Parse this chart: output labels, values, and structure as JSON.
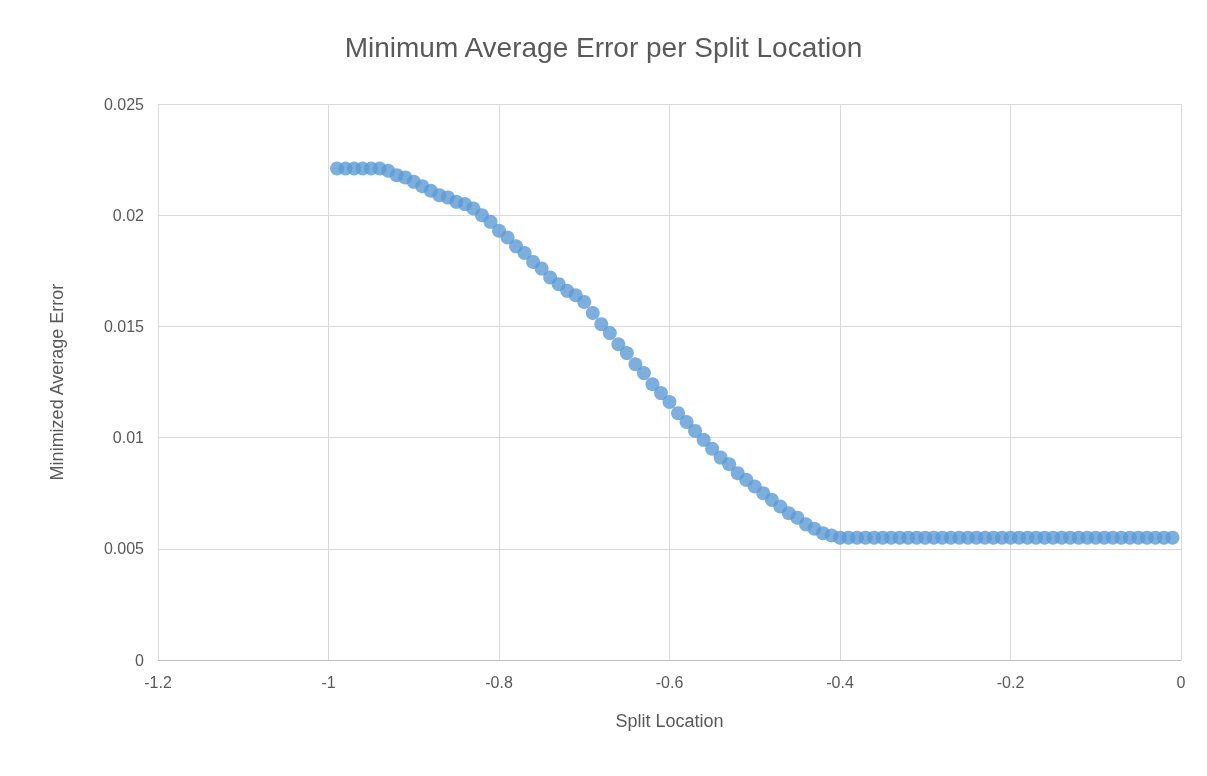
{
  "chart_data": {
    "type": "scatter",
    "title": "Minimum Average Error per Split Location",
    "xlabel": "Split Location",
    "ylabel": "Minimized Average Error",
    "x": [
      -0.99,
      -0.98,
      -0.97,
      -0.96,
      -0.95,
      -0.94,
      -0.93,
      -0.92,
      -0.91,
      -0.9,
      -0.89,
      -0.88,
      -0.87,
      -0.86,
      -0.85,
      -0.84,
      -0.83,
      -0.82,
      -0.81,
      -0.8,
      -0.79,
      -0.78,
      -0.77,
      -0.76,
      -0.75,
      -0.74,
      -0.73,
      -0.72,
      -0.71,
      -0.7,
      -0.69,
      -0.68,
      -0.67,
      -0.66,
      -0.65,
      -0.64,
      -0.63,
      -0.62,
      -0.61,
      -0.6,
      -0.59,
      -0.58,
      -0.57,
      -0.56,
      -0.55,
      -0.54,
      -0.53,
      -0.52,
      -0.51,
      -0.5,
      -0.49,
      -0.48,
      -0.47,
      -0.46,
      -0.45,
      -0.44,
      -0.43,
      -0.42,
      -0.41,
      -0.4,
      -0.39,
      -0.38,
      -0.37,
      -0.36,
      -0.35,
      -0.34,
      -0.33,
      -0.32,
      -0.31,
      -0.3,
      -0.29,
      -0.28,
      -0.27,
      -0.26,
      -0.25,
      -0.24,
      -0.23,
      -0.22,
      -0.21,
      -0.2,
      -0.19,
      -0.18,
      -0.17,
      -0.16,
      -0.15,
      -0.14,
      -0.13,
      -0.12,
      -0.11,
      -0.1,
      -0.09,
      -0.08,
      -0.07,
      -0.06,
      -0.05,
      -0.04,
      -0.03,
      -0.02,
      -0.01
    ],
    "series": [
      {
        "color": "#5b9bd5",
        "values": [
          0.0221,
          0.0221,
          0.0221,
          0.0221,
          0.0221,
          0.0221,
          0.022,
          0.0218,
          0.0217,
          0.0215,
          0.0213,
          0.0211,
          0.0209,
          0.0208,
          0.0206,
          0.0205,
          0.0203,
          0.02,
          0.0197,
          0.0193,
          0.019,
          0.0186,
          0.0183,
          0.0179,
          0.0176,
          0.0172,
          0.0169,
          0.0166,
          0.0164,
          0.0161,
          0.0156,
          0.0151,
          0.0147,
          0.0142,
          0.0138,
          0.0133,
          0.0129,
          0.0124,
          0.012,
          0.0116,
          0.0111,
          0.0107,
          0.0103,
          0.0099,
          0.0095,
          0.0091,
          0.0088,
          0.0084,
          0.0081,
          0.0078,
          0.0075,
          0.0072,
          0.0069,
          0.0066,
          0.0064,
          0.0061,
          0.0059,
          0.0057,
          0.0056,
          0.0055,
          0.0055,
          0.0055,
          0.0055,
          0.0055,
          0.0055,
          0.0055,
          0.0055,
          0.0055,
          0.0055,
          0.0055,
          0.0055,
          0.0055,
          0.0055,
          0.0055,
          0.0055,
          0.0055,
          0.0055,
          0.0055,
          0.0055,
          0.0055,
          0.0055,
          0.0055,
          0.0055,
          0.0055,
          0.0055,
          0.0055,
          0.0055,
          0.0055,
          0.0055,
          0.0055,
          0.0055,
          0.0055,
          0.0055,
          0.0055,
          0.0055,
          0.0055,
          0.0055,
          0.0055,
          0.0055
        ]
      }
    ],
    "xlim": [
      -1.2,
      0
    ],
    "xticks": [
      -1.2,
      -1,
      -0.8,
      -0.6,
      -0.4,
      -0.2,
      0
    ],
    "ylim": [
      0,
      0.025
    ],
    "yticks": [
      0,
      0.005,
      0.01,
      0.015,
      0.02,
      0.025
    ],
    "grid": true,
    "marker": "circle"
  }
}
